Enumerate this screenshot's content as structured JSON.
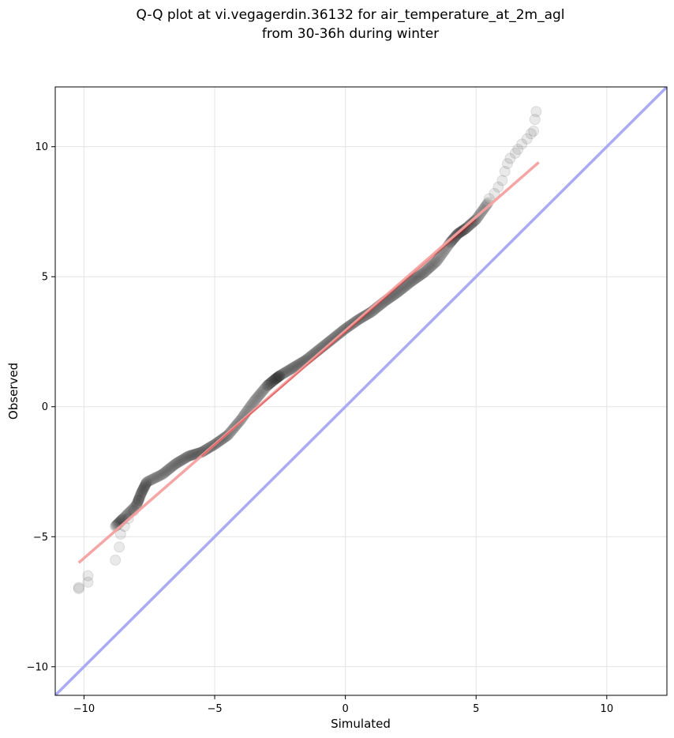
{
  "chart_data": {
    "type": "scatter",
    "title_line1": "Q-Q plot at vi.vegagerdin.36132 for air_temperature_at_2m_agl",
    "title_line2": "from 30-36h during winter",
    "xlabel": "Simulated",
    "ylabel": "Observed",
    "xlim": [
      -11.1,
      12.3
    ],
    "ylim": [
      -11.1,
      12.3
    ],
    "xticks": [
      -10,
      -5,
      0,
      5,
      10
    ],
    "yticks": [
      -10,
      -5,
      0,
      5,
      10
    ],
    "xtick_labels": [
      "−10",
      "−5",
      "0",
      "5",
      "10"
    ],
    "ytick_labels": [
      "−10",
      "−5",
      "0",
      "5",
      "10"
    ],
    "grid": true,
    "reference_line": {
      "kind": "identity y=x",
      "color": "#aaaaf5"
    },
    "fit_line": {
      "x": [
        -10.2,
        7.4
      ],
      "y": [
        -6.0,
        9.4
      ],
      "color": "#f5a0a0"
    },
    "fit_line_dark_segment": {
      "x": [
        -5.5,
        5.0
      ],
      "y": [
        -1.9,
        7.2
      ],
      "color": "#c80000"
    },
    "quantile_curve": {
      "x": [
        -8.8,
        -8.5,
        -8.0,
        -7.8,
        -7.6,
        -7.0,
        -6.5,
        -6.0,
        -5.5,
        -5.0,
        -4.5,
        -4.0,
        -3.5,
        -3.0,
        -2.7,
        -2.5,
        -2.0,
        -1.5,
        -1.0,
        -0.5,
        0.0,
        0.5,
        1.0,
        1.5,
        2.0,
        2.5,
        3.0,
        3.5,
        4.0,
        4.3,
        4.6,
        5.0,
        5.5
      ],
      "y": [
        -4.6,
        -4.3,
        -3.8,
        -3.3,
        -2.9,
        -2.6,
        -2.2,
        -1.9,
        -1.75,
        -1.45,
        -1.1,
        -0.5,
        0.2,
        0.8,
        1.05,
        1.2,
        1.5,
        1.8,
        2.2,
        2.6,
        3.0,
        3.35,
        3.65,
        4.05,
        4.4,
        4.8,
        5.15,
        5.6,
        6.3,
        6.65,
        6.85,
        7.2,
        7.9
      ],
      "color": "#222222"
    },
    "tail_points": [
      {
        "x": -10.2,
        "y": -7.0
      },
      {
        "x": -10.2,
        "y": -6.95
      },
      {
        "x": -9.85,
        "y": -6.5
      },
      {
        "x": -9.85,
        "y": -6.75
      },
      {
        "x": -8.8,
        "y": -5.9
      },
      {
        "x": -8.65,
        "y": -5.4
      },
      {
        "x": -8.6,
        "y": -4.9
      },
      {
        "x": -8.45,
        "y": -4.6
      },
      {
        "x": -8.3,
        "y": -4.3
      },
      {
        "x": -8.1,
        "y": -4.0
      },
      {
        "x": -7.9,
        "y": -3.6
      },
      {
        "x": 5.5,
        "y": 8.0
      },
      {
        "x": 5.7,
        "y": 8.2
      },
      {
        "x": 5.85,
        "y": 8.45
      },
      {
        "x": 6.0,
        "y": 8.7
      },
      {
        "x": 6.1,
        "y": 9.05
      },
      {
        "x": 6.2,
        "y": 9.35
      },
      {
        "x": 6.3,
        "y": 9.55
      },
      {
        "x": 6.5,
        "y": 9.75
      },
      {
        "x": 6.6,
        "y": 9.9
      },
      {
        "x": 6.75,
        "y": 10.1
      },
      {
        "x": 6.95,
        "y": 10.3
      },
      {
        "x": 7.1,
        "y": 10.5
      },
      {
        "x": 7.2,
        "y": 10.6
      },
      {
        "x": 7.25,
        "y": 11.05
      },
      {
        "x": 7.3,
        "y": 11.35
      }
    ]
  }
}
